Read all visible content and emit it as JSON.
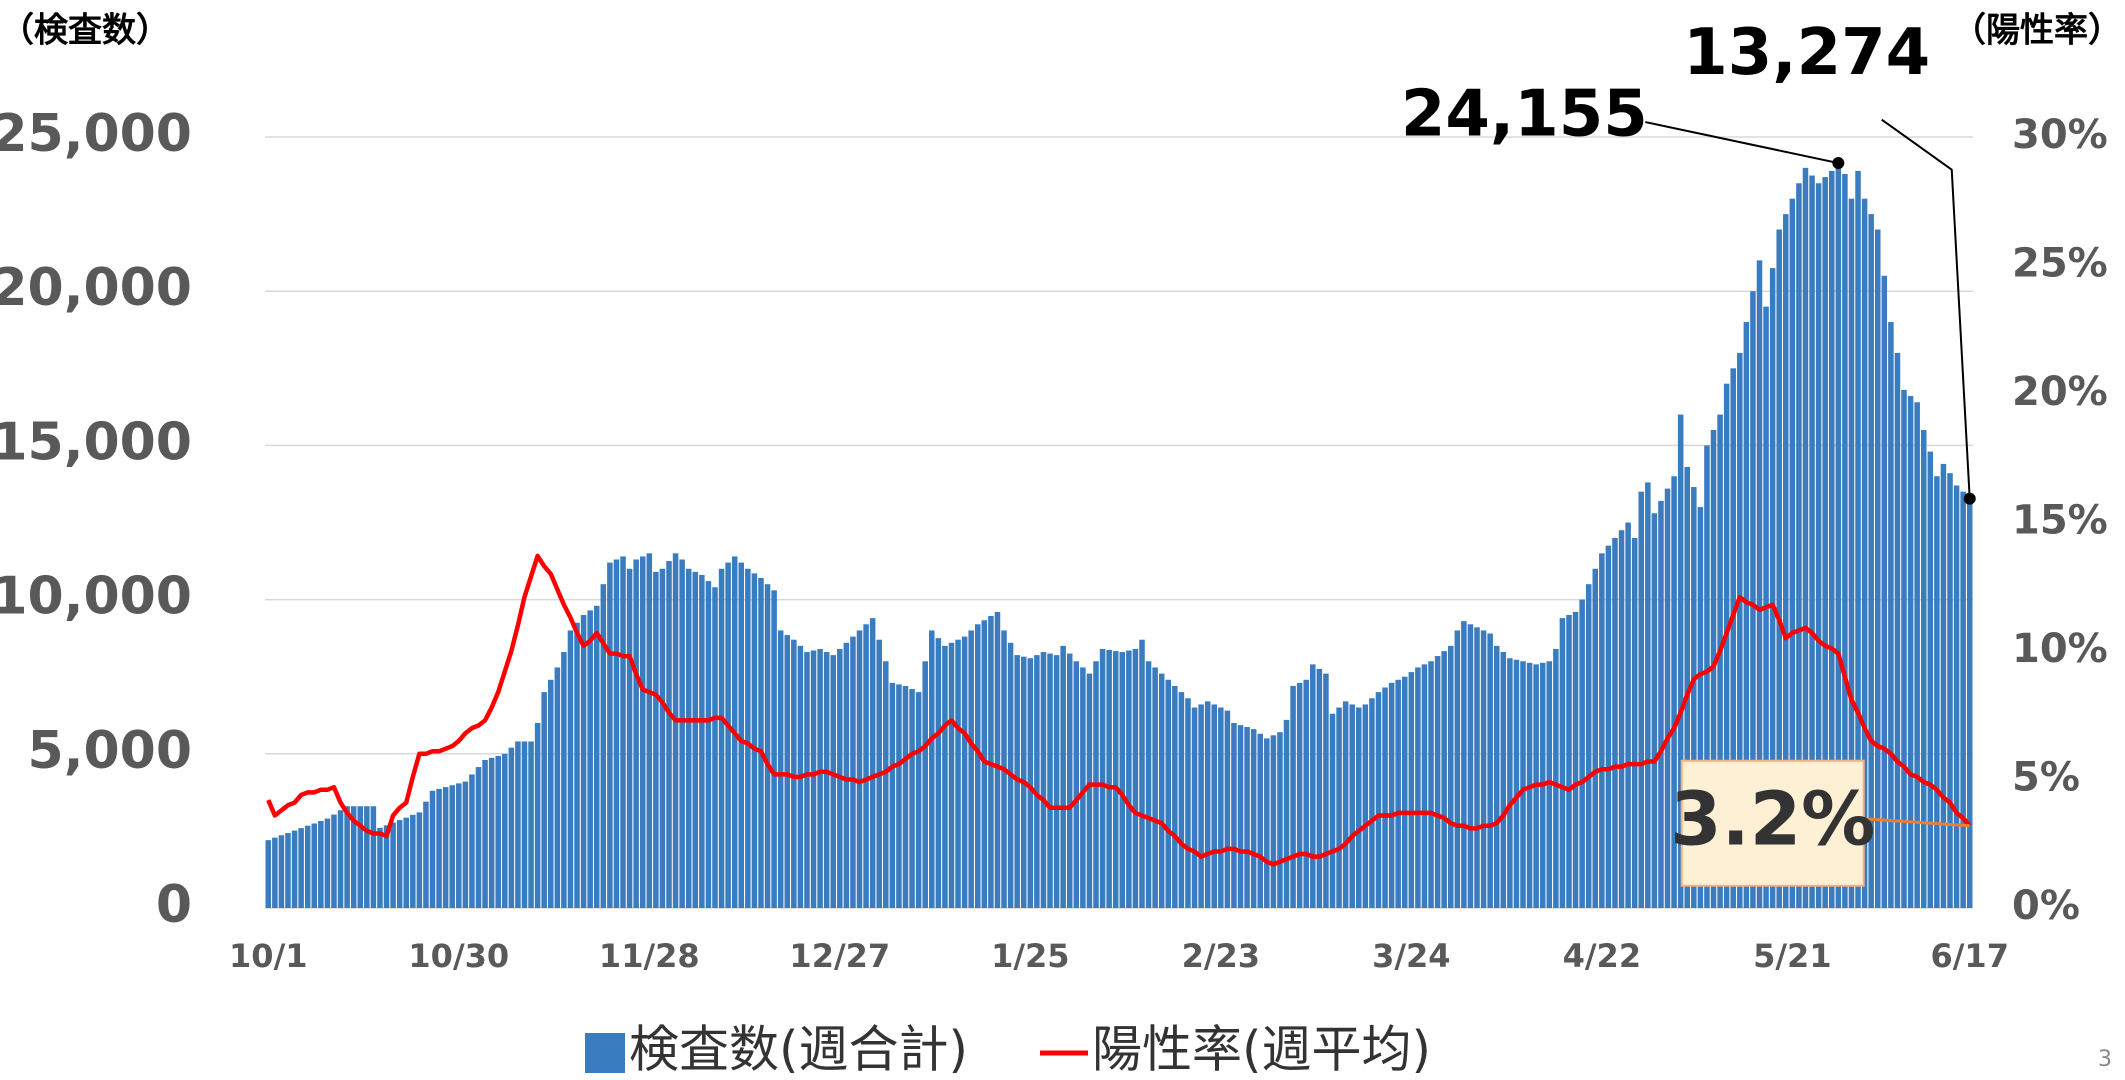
{
  "chart_data": {
    "type": "bar_line",
    "ylabel": "（検査数）",
    "y2label": "（陽性率）",
    "categories": [
      "10/1",
      null,
      null,
      null,
      null,
      null,
      null,
      null,
      null,
      null,
      null,
      null,
      null,
      null,
      null,
      null,
      null,
      null,
      null,
      null,
      null,
      null,
      null,
      null,
      null,
      null,
      null,
      null,
      null,
      "10/30",
      null,
      null,
      null,
      null,
      null,
      null,
      null,
      null,
      null,
      null,
      null,
      null,
      null,
      null,
      null,
      null,
      null,
      null,
      null,
      null,
      null,
      null,
      null,
      null,
      null,
      null,
      null,
      null,
      "11/28",
      null,
      null,
      null,
      null,
      null,
      null,
      null,
      null,
      null,
      null,
      null,
      null,
      null,
      null,
      null,
      null,
      null,
      null,
      null,
      null,
      null,
      null,
      null,
      null,
      null,
      null,
      null,
      null,
      "12/27",
      null,
      null,
      null,
      null,
      null,
      null,
      null,
      null,
      null,
      null,
      null,
      null,
      null,
      null,
      null,
      null,
      null,
      null,
      null,
      null,
      null,
      null,
      null,
      null,
      null,
      null,
      null,
      null,
      "1/25",
      null,
      null,
      null,
      null,
      null,
      null,
      null,
      null,
      null,
      null,
      null,
      null,
      null,
      null,
      null,
      null,
      null,
      null,
      null,
      null,
      null,
      null,
      null,
      null,
      null,
      null,
      null,
      null,
      "2/23",
      null,
      null,
      null,
      null,
      null,
      null,
      null,
      null,
      null,
      null,
      null,
      null,
      null,
      null,
      null,
      null,
      null,
      null,
      null,
      null,
      null,
      null,
      null,
      null,
      null,
      null,
      null,
      null,
      "3/24",
      null,
      null,
      null,
      null,
      null,
      null,
      null,
      null,
      null,
      null,
      null,
      null,
      null,
      null,
      null,
      null,
      null,
      null,
      null,
      null,
      null,
      null,
      null,
      null,
      null,
      null,
      null,
      null,
      "4/22",
      null,
      null,
      null,
      null,
      null,
      null,
      null,
      null,
      null,
      null,
      null,
      null,
      null,
      null,
      null,
      null,
      null,
      null,
      null,
      null,
      null,
      null,
      null,
      null,
      null,
      null,
      null,
      null,
      "5/21",
      null,
      null,
      null,
      null,
      null,
      null,
      null,
      null,
      null,
      null,
      null,
      null,
      null,
      null,
      null,
      null,
      null,
      null,
      null,
      null,
      null,
      null,
      null,
      null,
      null,
      null,
      "6/17"
    ],
    "series": [
      {
        "name": "検査数(週合計)",
        "type": "bar",
        "color": "#3a7cc0",
        "axis": "y",
        "values": [
          2200,
          2280,
          2360,
          2430,
          2510,
          2590,
          2670,
          2740,
          2820,
          2900,
          3030,
          3170,
          3300,
          3300,
          3300,
          3300,
          3300,
          2600,
          2680,
          2770,
          2850,
          2930,
          3020,
          3100,
          3450,
          3800,
          3860,
          3920,
          3980,
          4040,
          4100,
          4330,
          4570,
          4800,
          4870,
          4930,
          5000,
          5200,
          5400,
          5400,
          5400,
          6000,
          7000,
          7400,
          7800,
          8300,
          9000,
          9250,
          9500,
          9650,
          9800,
          10500,
          11200,
          11300,
          11400,
          11000,
          11300,
          11400,
          11500,
          10900,
          11000,
          11250,
          11500,
          11300,
          11000,
          10900,
          10800,
          10600,
          10400,
          11000,
          11200,
          11400,
          11200,
          11000,
          10850,
          10700,
          10500,
          10300,
          9000,
          8850,
          8700,
          8500,
          8300,
          8350,
          8400,
          8300,
          8200,
          8400,
          8600,
          8800,
          9000,
          9200,
          9400,
          8700,
          8000,
          7300,
          7250,
          7200,
          7100,
          7000,
          8000,
          9000,
          8750,
          8500,
          8600,
          8700,
          8800,
          9000,
          9200,
          9330,
          9470,
          9600,
          9000,
          8600,
          8200,
          8150,
          8100,
          8200,
          8300,
          8250,
          8200,
          8500,
          8250,
          8000,
          7800,
          7600,
          8000,
          8400,
          8370,
          8330,
          8300,
          8350,
          8400,
          8700,
          8000,
          7800,
          7600,
          7400,
          7200,
          7000,
          6800,
          6500,
          6600,
          6700,
          6600,
          6500,
          6400,
          6000,
          5930,
          5870,
          5800,
          5650,
          5500,
          5600,
          5700,
          6100,
          7200,
          7300,
          7400,
          7900,
          7750,
          7600,
          6300,
          6500,
          6700,
          6600,
          6500,
          6600,
          6800,
          7000,
          7150,
          7300,
          7400,
          7500,
          7650,
          7800,
          7900,
          8000,
          8170,
          8330,
          8500,
          9000,
          9300,
          9200,
          9100,
          9000,
          8900,
          8500,
          8300,
          8100,
          8050,
          8000,
          7950,
          7900,
          7950,
          8000,
          8400,
          9400,
          9500,
          9600,
          10000,
          10500,
          11000,
          11500,
          11750,
          12000,
          12250,
          12500,
          12000,
          13500,
          13800,
          12800,
          13200,
          13600,
          14000,
          16000,
          14300,
          13650,
          13000,
          15000,
          15500,
          16000,
          17000,
          17500,
          18000,
          19000,
          20000,
          21000,
          19500,
          20750,
          22000,
          22500,
          23000,
          23500,
          24000,
          23750,
          23500,
          23700,
          23900,
          24155,
          23800,
          23000,
          23900,
          23000,
          22500,
          22000,
          20500,
          19000,
          18000,
          16800,
          16600,
          16400,
          15500,
          14800,
          14000,
          14400,
          14100,
          13700,
          13500,
          13274
        ],
        "value_labels": {
          "239": "24,155",
          "259": "13,274"
        }
      },
      {
        "name": "陽性率(週平均)",
        "type": "line",
        "color": "#ff0000",
        "axis": "y2",
        "values": [
          4.2,
          3.6,
          3.8,
          4.0,
          4.1,
          4.4,
          4.5,
          4.5,
          4.6,
          4.6,
          4.7,
          4.1,
          3.7,
          3.4,
          3.2,
          3.0,
          2.9,
          2.9,
          2.8,
          3.6,
          3.9,
          4.1,
          5.1,
          6.0,
          6.0,
          6.1,
          6.1,
          6.2,
          6.3,
          6.5,
          6.8,
          7.0,
          7.1,
          7.3,
          7.8,
          8.4,
          9.2,
          10.0,
          11.0,
          12.1,
          12.9,
          13.7,
          13.3,
          13.0,
          12.4,
          11.8,
          11.3,
          10.7,
          10.2,
          10.4,
          10.7,
          10.3,
          9.9,
          9.9,
          9.8,
          9.8,
          9.1,
          8.5,
          8.4,
          8.3,
          8.0,
          7.6,
          7.3,
          7.3,
          7.3,
          7.3,
          7.3,
          7.3,
          7.4,
          7.4,
          7.1,
          6.8,
          6.5,
          6.4,
          6.2,
          6.1,
          5.6,
          5.2,
          5.2,
          5.2,
          5.1,
          5.1,
          5.2,
          5.2,
          5.3,
          5.3,
          5.2,
          5.1,
          5.0,
          5.0,
          4.9,
          5.0,
          5.1,
          5.2,
          5.3,
          5.5,
          5.6,
          5.8,
          6.0,
          6.1,
          6.3,
          6.6,
          6.8,
          7.1,
          7.3,
          7.0,
          6.8,
          6.4,
          6.1,
          5.7,
          5.6,
          5.5,
          5.4,
          5.2,
          5.0,
          4.9,
          4.7,
          4.4,
          4.2,
          3.9,
          3.9,
          3.9,
          3.9,
          4.2,
          4.5,
          4.8,
          4.8,
          4.8,
          4.7,
          4.7,
          4.4,
          4.0,
          3.7,
          3.6,
          3.5,
          3.4,
          3.3,
          3.0,
          2.8,
          2.5,
          2.3,
          2.2,
          2.0,
          2.1,
          2.2,
          2.2,
          2.3,
          2.3,
          2.2,
          2.2,
          2.1,
          2.0,
          1.8,
          1.7,
          1.8,
          1.9,
          2.0,
          2.1,
          2.1,
          2.0,
          2.0,
          2.1,
          2.2,
          2.3,
          2.5,
          2.8,
          3.0,
          3.2,
          3.4,
          3.6,
          3.6,
          3.6,
          3.7,
          3.7,
          3.7,
          3.7,
          3.7,
          3.7,
          3.6,
          3.5,
          3.3,
          3.2,
          3.2,
          3.1,
          3.1,
          3.2,
          3.2,
          3.3,
          3.6,
          4.0,
          4.3,
          4.6,
          4.7,
          4.8,
          4.8,
          4.9,
          4.8,
          4.7,
          4.6,
          4.8,
          4.9,
          5.1,
          5.3,
          5.4,
          5.4,
          5.5,
          5.5,
          5.6,
          5.6,
          5.6,
          5.7,
          5.7,
          6.1,
          6.6,
          7.0,
          7.6,
          8.3,
          8.9,
          9.1,
          9.2,
          9.4,
          10.0,
          10.7,
          11.4,
          12.1,
          11.9,
          11.8,
          11.6,
          11.7,
          11.8,
          11.2,
          10.5,
          10.7,
          10.8,
          10.9,
          10.7,
          10.4,
          10.2,
          10.1,
          9.9,
          9.0,
          8.1,
          7.6,
          7.0,
          6.5,
          6.3,
          6.2,
          6.0,
          5.7,
          5.5,
          5.2,
          5.1,
          4.9,
          4.8,
          4.6,
          4.3,
          4.1,
          3.7,
          3.5,
          3.2
        ],
        "value_labels": {
          "259": "3.2%"
        }
      }
    ],
    "ylim": [
      0,
      25000
    ],
    "yticks": [
      0,
      {
        "value": 5000,
        "label": "5,000"
      },
      {
        "value": 10000,
        "label": "10,000"
      },
      {
        "value": 15000,
        "label": "15,000"
      },
      {
        "value": 20000,
        "label": "20,000"
      },
      {
        "value": 25000,
        "label": "25,000"
      }
    ],
    "y2lim": [
      0,
      30
    ],
    "y2ticks": [
      {
        "value": 0,
        "label": "0%"
      },
      {
        "value": 5,
        "label": "5%"
      },
      {
        "value": 10,
        "label": "10%"
      },
      {
        "value": 15,
        "label": "15%"
      },
      {
        "value": 20,
        "label": "20%"
      },
      {
        "value": 25,
        "label": "25%"
      },
      {
        "value": 30,
        "label": "30%"
      }
    ],
    "grid": true,
    "legend": "bottom"
  },
  "page_number": "3"
}
